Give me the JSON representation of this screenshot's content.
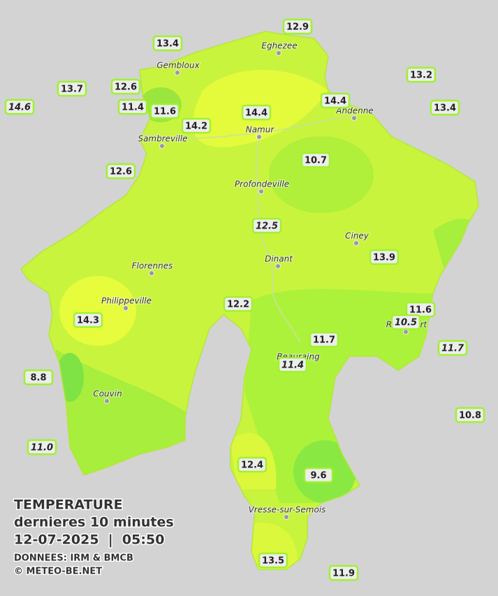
{
  "legend": {
    "title": "TEMPERATURE",
    "subtitle": "dernieres 10 minutes",
    "datetime": "12-07-2025  |  05:50",
    "source": "DONNEES: IRM & BMCB",
    "copyright": "© METEO-BE.NET"
  },
  "cities": [
    "Eghezee",
    "Gembloux",
    "Andenne",
    "Namur",
    "Sambreville",
    "Profondeville",
    "Ciney",
    "Dinant",
    "Florennes",
    "Philippeville",
    "Rochefort",
    "Beauraing",
    "Couvin",
    "Vresse-sur-Semois"
  ],
  "stations": [
    {
      "label": "12.9",
      "italic": false
    },
    {
      "label": "13.4",
      "italic": false
    },
    {
      "label": "13.2",
      "italic": false
    },
    {
      "label": "13.7",
      "italic": false
    },
    {
      "label": "12.6",
      "italic": false
    },
    {
      "label": "14.6",
      "italic": true
    },
    {
      "label": "11.4",
      "italic": false
    },
    {
      "label": "11.6",
      "italic": false
    },
    {
      "label": "14.4",
      "italic": false
    },
    {
      "label": "14.4",
      "italic": false
    },
    {
      "label": "13.4",
      "italic": false
    },
    {
      "label": "14.2",
      "italic": false
    },
    {
      "label": "10.7",
      "italic": false
    },
    {
      "label": "12.6",
      "italic": false
    },
    {
      "label": "12.5",
      "italic": true
    },
    {
      "label": "13.9",
      "italic": false
    },
    {
      "label": "12.2",
      "italic": false
    },
    {
      "label": "14.3",
      "italic": false
    },
    {
      "label": "11.6",
      "italic": false
    },
    {
      "label": "10.5",
      "italic": true
    },
    {
      "label": "11.7",
      "italic": false
    },
    {
      "label": "11.7",
      "italic": true
    },
    {
      "label": "11.4",
      "italic": true
    },
    {
      "label": "8.8",
      "italic": false
    },
    {
      "label": "10.8",
      "italic": false
    },
    {
      "label": "11.0",
      "italic": true
    },
    {
      "label": "12.4",
      "italic": false
    },
    {
      "label": "9.6",
      "italic": false
    },
    {
      "label": "13.5",
      "italic": false
    },
    {
      "label": "11.9",
      "italic": false
    }
  ]
}
